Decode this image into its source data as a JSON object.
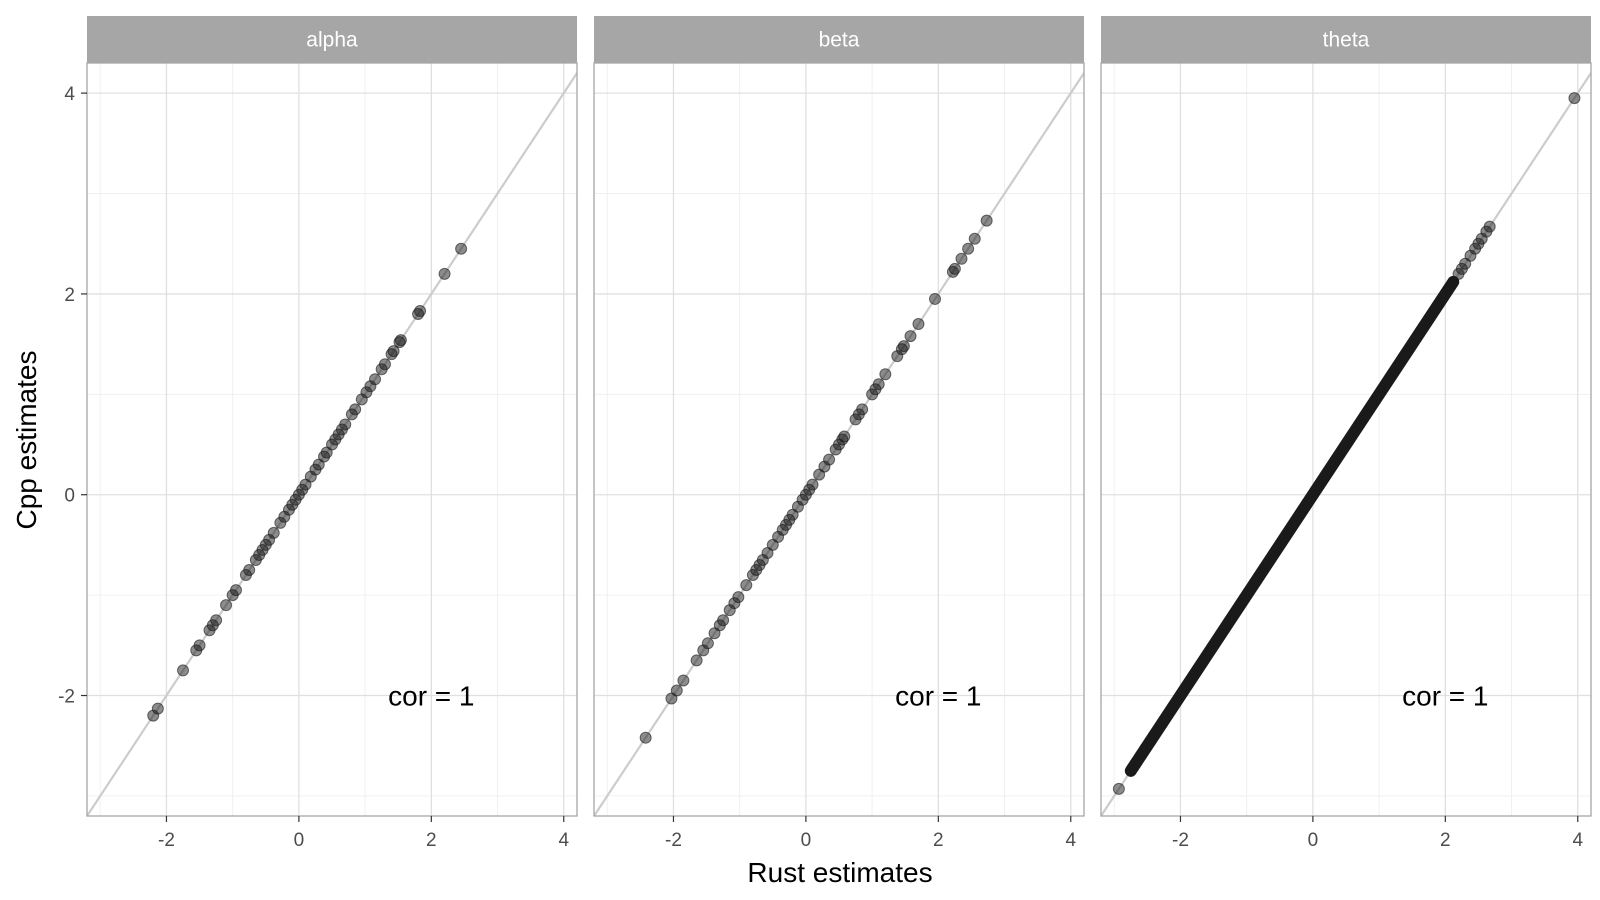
{
  "chart_data": {
    "type": "scatter",
    "layout": "facet",
    "xlabel": "Rust estimates",
    "ylabel": "Cpp estimates",
    "xlim": [
      -3.2,
      4.2
    ],
    "ylim": [
      -3.2,
      4.3
    ],
    "x_ticks": [
      -2,
      0,
      2,
      4
    ],
    "y_ticks": [
      -2,
      0,
      2,
      4
    ],
    "x_tick_labels": [
      "-2",
      "0",
      "2",
      "4"
    ],
    "y_tick_labels": [
      "-2",
      "0",
      "2",
      "4"
    ],
    "grid": true,
    "reference_line": {
      "slope": 1,
      "intercept": 0
    },
    "colors": {
      "points": "#1a1a1a",
      "strip": "#a6a6a6",
      "reference_line": "#cccccc",
      "grid_major": "#e0e0e0",
      "grid_minor": "#f0f0f0",
      "panel_border": "#a6a6a6"
    },
    "panels": [
      {
        "label": "alpha",
        "annotation": "cor = 1",
        "points": [
          [
            -2.2,
            -2.2
          ],
          [
            -2.13,
            -2.13
          ],
          [
            -1.75,
            -1.75
          ],
          [
            -1.55,
            -1.55
          ],
          [
            -1.5,
            -1.5
          ],
          [
            -1.35,
            -1.35
          ],
          [
            -1.3,
            -1.3
          ],
          [
            -1.25,
            -1.25
          ],
          [
            -1.1,
            -1.1
          ],
          [
            -1.0,
            -1.0
          ],
          [
            -0.95,
            -0.95
          ],
          [
            -0.8,
            -0.8
          ],
          [
            -0.75,
            -0.75
          ],
          [
            -0.65,
            -0.65
          ],
          [
            -0.6,
            -0.6
          ],
          [
            -0.55,
            -0.55
          ],
          [
            -0.5,
            -0.5
          ],
          [
            -0.45,
            -0.45
          ],
          [
            -0.38,
            -0.38
          ],
          [
            -0.28,
            -0.28
          ],
          [
            -0.22,
            -0.22
          ],
          [
            -0.15,
            -0.15
          ],
          [
            -0.1,
            -0.1
          ],
          [
            -0.05,
            -0.05
          ],
          [
            0.0,
            0.0
          ],
          [
            0.05,
            0.05
          ],
          [
            0.1,
            0.1
          ],
          [
            0.18,
            0.18
          ],
          [
            0.25,
            0.25
          ],
          [
            0.3,
            0.3
          ],
          [
            0.38,
            0.38
          ],
          [
            0.42,
            0.42
          ],
          [
            0.5,
            0.5
          ],
          [
            0.55,
            0.55
          ],
          [
            0.6,
            0.6
          ],
          [
            0.65,
            0.65
          ],
          [
            0.7,
            0.7
          ],
          [
            0.8,
            0.8
          ],
          [
            0.85,
            0.85
          ],
          [
            0.95,
            0.95
          ],
          [
            1.02,
            1.02
          ],
          [
            1.08,
            1.08
          ],
          [
            1.15,
            1.15
          ],
          [
            1.25,
            1.25
          ],
          [
            1.3,
            1.3
          ],
          [
            1.4,
            1.4
          ],
          [
            1.43,
            1.43
          ],
          [
            1.52,
            1.52
          ],
          [
            1.54,
            1.54
          ],
          [
            1.8,
            1.8
          ],
          [
            1.83,
            1.83
          ],
          [
            2.2,
            2.2
          ],
          [
            2.45,
            2.45
          ]
        ]
      },
      {
        "label": "beta",
        "annotation": "cor = 1",
        "points": [
          [
            -2.42,
            -2.42
          ],
          [
            -2.03,
            -2.03
          ],
          [
            -1.95,
            -1.95
          ],
          [
            -1.85,
            -1.85
          ],
          [
            -1.65,
            -1.65
          ],
          [
            -1.55,
            -1.55
          ],
          [
            -1.48,
            -1.48
          ],
          [
            -1.38,
            -1.38
          ],
          [
            -1.3,
            -1.3
          ],
          [
            -1.25,
            -1.25
          ],
          [
            -1.15,
            -1.15
          ],
          [
            -1.08,
            -1.08
          ],
          [
            -1.02,
            -1.02
          ],
          [
            -0.9,
            -0.9
          ],
          [
            -0.8,
            -0.8
          ],
          [
            -0.75,
            -0.75
          ],
          [
            -0.7,
            -0.7
          ],
          [
            -0.65,
            -0.65
          ],
          [
            -0.58,
            -0.58
          ],
          [
            -0.5,
            -0.5
          ],
          [
            -0.42,
            -0.42
          ],
          [
            -0.35,
            -0.35
          ],
          [
            -0.3,
            -0.3
          ],
          [
            -0.25,
            -0.25
          ],
          [
            -0.2,
            -0.2
          ],
          [
            -0.12,
            -0.12
          ],
          [
            -0.05,
            -0.05
          ],
          [
            0.0,
            0.0
          ],
          [
            0.05,
            0.05
          ],
          [
            0.1,
            0.1
          ],
          [
            0.2,
            0.2
          ],
          [
            0.28,
            0.28
          ],
          [
            0.35,
            0.35
          ],
          [
            0.45,
            0.45
          ],
          [
            0.5,
            0.5
          ],
          [
            0.55,
            0.55
          ],
          [
            0.58,
            0.58
          ],
          [
            0.75,
            0.75
          ],
          [
            0.8,
            0.8
          ],
          [
            0.85,
            0.85
          ],
          [
            1.0,
            1.0
          ],
          [
            1.05,
            1.05
          ],
          [
            1.1,
            1.1
          ],
          [
            1.2,
            1.2
          ],
          [
            1.38,
            1.38
          ],
          [
            1.45,
            1.45
          ],
          [
            1.48,
            1.48
          ],
          [
            1.58,
            1.58
          ],
          [
            1.7,
            1.7
          ],
          [
            1.95,
            1.95
          ],
          [
            2.22,
            2.22
          ],
          [
            2.25,
            2.25
          ],
          [
            2.35,
            2.35
          ],
          [
            2.45,
            2.45
          ],
          [
            2.55,
            2.55
          ],
          [
            2.73,
            2.73
          ]
        ]
      },
      {
        "label": "theta",
        "annotation": "cor = 1",
        "dense_range": [
          -2.75,
          2.12
        ],
        "points": [
          [
            -2.93,
            -2.93
          ],
          [
            -2.72,
            -2.72
          ],
          [
            -2.68,
            -2.68
          ],
          [
            -2.6,
            -2.6
          ],
          [
            -2.52,
            -2.52
          ],
          [
            -2.45,
            -2.45
          ],
          [
            -2.4,
            -2.4
          ],
          [
            2.2,
            2.2
          ],
          [
            2.25,
            2.25
          ],
          [
            2.3,
            2.3
          ],
          [
            2.38,
            2.38
          ],
          [
            2.45,
            2.45
          ],
          [
            2.5,
            2.5
          ],
          [
            2.55,
            2.55
          ],
          [
            2.62,
            2.62
          ],
          [
            2.67,
            2.67
          ],
          [
            3.95,
            3.95
          ]
        ]
      }
    ]
  }
}
